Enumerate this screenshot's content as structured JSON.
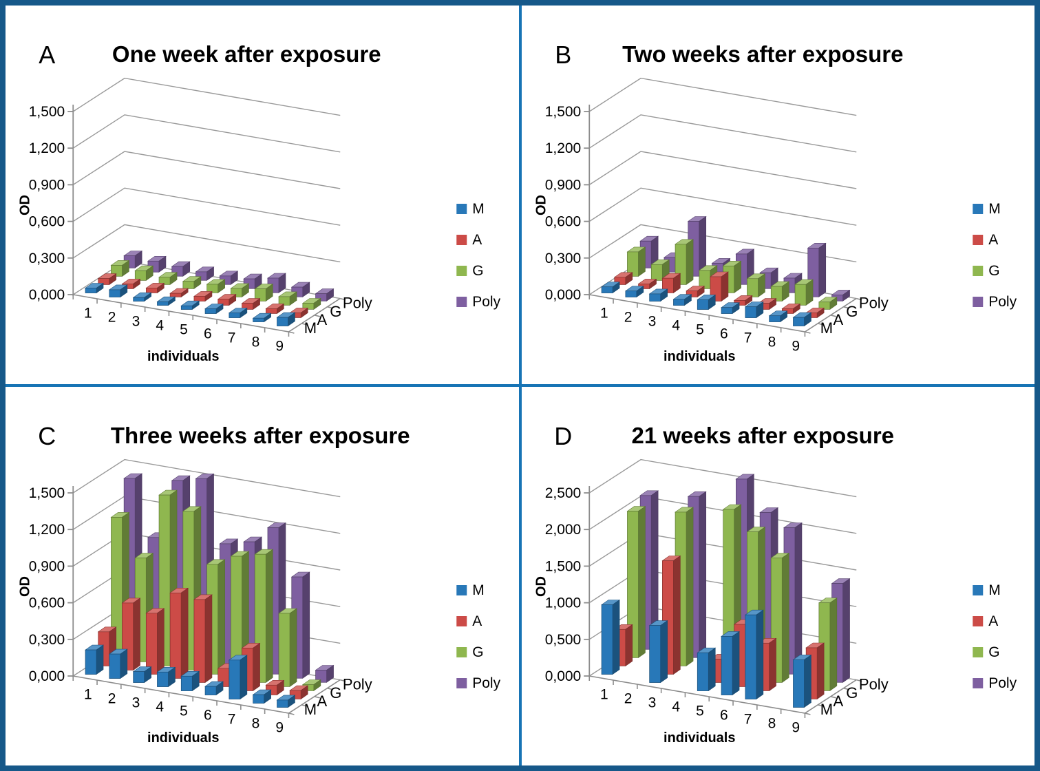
{
  "figure": {
    "border_color": "#165889",
    "divider_color": "#1774B5",
    "background": "#FFFFFF",
    "gridline_color": "#999999",
    "axis_color": "#8C8C8C"
  },
  "series_colors": {
    "M": "#2878B8",
    "A": "#CC4B47",
    "G": "#8FB74F",
    "Poly": "#7E5FA0"
  },
  "chart_data": [
    {
      "id": "A",
      "type": "bar",
      "panel_label": "A",
      "title": "One week after exposure",
      "xlabel": "individuals",
      "ylabel": "OD",
      "categories": [
        "1",
        "2",
        "3",
        "4",
        "5",
        "6",
        "7",
        "8",
        "9"
      ],
      "depth_axis_labels": [
        "M",
        "A",
        "G",
        "Poly"
      ],
      "ymax": 1.5,
      "ystep": 0.3,
      "ytick_labels": [
        "0,000",
        "0,300",
        "0,600",
        "0,900",
        "1,200",
        "1,500"
      ],
      "legend_position": "right",
      "grid": true,
      "series": [
        {
          "name": "M",
          "color": "#2878B8",
          "values": [
            0.04,
            0.06,
            0.03,
            0.03,
            0.03,
            0.04,
            0.04,
            0.03,
            0.07
          ]
        },
        {
          "name": "A",
          "color": "#CC4B47",
          "values": [
            0.05,
            0.04,
            0.04,
            0.03,
            0.04,
            0.05,
            0.05,
            0.04,
            0.04
          ]
        },
        {
          "name": "G",
          "color": "#8FB74F",
          "values": [
            0.09,
            0.08,
            0.06,
            0.06,
            0.07,
            0.07,
            0.1,
            0.07,
            0.05
          ]
        },
        {
          "name": "Poly",
          "color": "#7E5FA0",
          "values": [
            0.1,
            0.09,
            0.08,
            0.07,
            0.07,
            0.08,
            0.12,
            0.08,
            0.06
          ]
        }
      ]
    },
    {
      "id": "B",
      "type": "bar",
      "panel_label": "B",
      "title": "Two weeks after exposure",
      "xlabel": "individuals",
      "ylabel": "OD",
      "categories": [
        "1",
        "2",
        "3",
        "4",
        "5",
        "6",
        "7",
        "8",
        "9"
      ],
      "depth_axis_labels": [
        "M",
        "A",
        "G",
        "Poly"
      ],
      "ymax": 1.5,
      "ystep": 0.3,
      "ytick_labels": [
        "0,000",
        "0,300",
        "0,600",
        "0,900",
        "1,200",
        "1,500"
      ],
      "legend_position": "right",
      "grid": true,
      "series": [
        {
          "name": "M",
          "color": "#2878B8",
          "values": [
            0.05,
            0.05,
            0.06,
            0.05,
            0.08,
            0.05,
            0.09,
            0.05,
            0.07
          ]
        },
        {
          "name": "A",
          "color": "#CC4B47",
          "values": [
            0.06,
            0.04,
            0.12,
            0.05,
            0.2,
            0.04,
            0.05,
            0.04,
            0.04
          ]
        },
        {
          "name": "G",
          "color": "#8FB74F",
          "values": [
            0.2,
            0.13,
            0.33,
            0.15,
            0.22,
            0.15,
            0.12,
            0.17,
            0.06
          ]
        },
        {
          "name": "Poly",
          "color": "#7E5FA0",
          "values": [
            0.22,
            0.12,
            0.45,
            0.14,
            0.25,
            0.13,
            0.12,
            0.4,
            0.05
          ]
        }
      ]
    },
    {
      "id": "C",
      "type": "bar",
      "panel_label": "C",
      "title": "Three weeks after exposure",
      "xlabel": "individuals",
      "ylabel": "OD",
      "categories": [
        "1",
        "2",
        "3",
        "4",
        "5",
        "6",
        "7",
        "8",
        "9"
      ],
      "depth_axis_labels": [
        "M",
        "A",
        "G",
        "Poly"
      ],
      "ymax": 1.5,
      "ystep": 0.3,
      "ytick_labels": [
        "0,000",
        "0,300",
        "0,600",
        "0,900",
        "1,200",
        "1,500"
      ],
      "legend_position": "right",
      "grid": true,
      "series": [
        {
          "name": "M",
          "color": "#2878B8",
          "values": [
            0.2,
            0.2,
            0.09,
            0.12,
            0.12,
            0.07,
            0.32,
            0.07,
            0.06
          ]
        },
        {
          "name": "A",
          "color": "#CC4B47",
          "values": [
            0.28,
            0.55,
            0.5,
            0.7,
            0.68,
            0.15,
            0.35,
            0.08,
            0.07
          ]
        },
        {
          "name": "G",
          "color": "#8FB74F",
          "values": [
            1.15,
            0.85,
            1.4,
            1.3,
            0.9,
            1.0,
            1.05,
            0.6,
            0.05
          ]
        },
        {
          "name": "Poly",
          "color": "#7E5FA0",
          "values": [
            1.4,
            0.95,
            1.45,
            1.5,
            1.0,
            1.05,
            1.2,
            0.83,
            0.1
          ]
        }
      ]
    },
    {
      "id": "D",
      "type": "bar",
      "panel_label": "D",
      "title": "21 weeks after exposure",
      "xlabel": "individuals",
      "ylabel": "OD",
      "categories": [
        "1",
        "2",
        "3",
        "4",
        "5",
        "6",
        "7",
        "8",
        "9"
      ],
      "depth_axis_labels": [
        "M",
        "A",
        "G",
        "Poly"
      ],
      "ymax": 2.5,
      "ystep": 0.5,
      "ytick_labels": [
        "0,000",
        "0,500",
        "1,000",
        "1,500",
        "2,000",
        "2,500"
      ],
      "legend_position": "right",
      "grid": true,
      "series": [
        {
          "name": "M",
          "color": "#2878B8",
          "values": [
            0.95,
            0,
            0.78,
            0,
            0.52,
            0.8,
            1.15,
            0,
            0.65
          ]
        },
        {
          "name": "A",
          "color": "#CC4B47",
          "values": [
            0.5,
            0,
            1.55,
            0,
            0.32,
            0.85,
            0.65,
            0,
            0.7
          ]
        },
        {
          "name": "G",
          "color": "#8FB74F",
          "values": [
            2.0,
            0,
            2.1,
            0,
            2.25,
            2.0,
            1.7,
            0,
            1.2
          ]
        },
        {
          "name": "Poly",
          "color": "#7E5FA0",
          "values": [
            2.1,
            0,
            2.2,
            0,
            2.55,
            2.15,
            2.0,
            0,
            1.35
          ]
        }
      ]
    }
  ]
}
